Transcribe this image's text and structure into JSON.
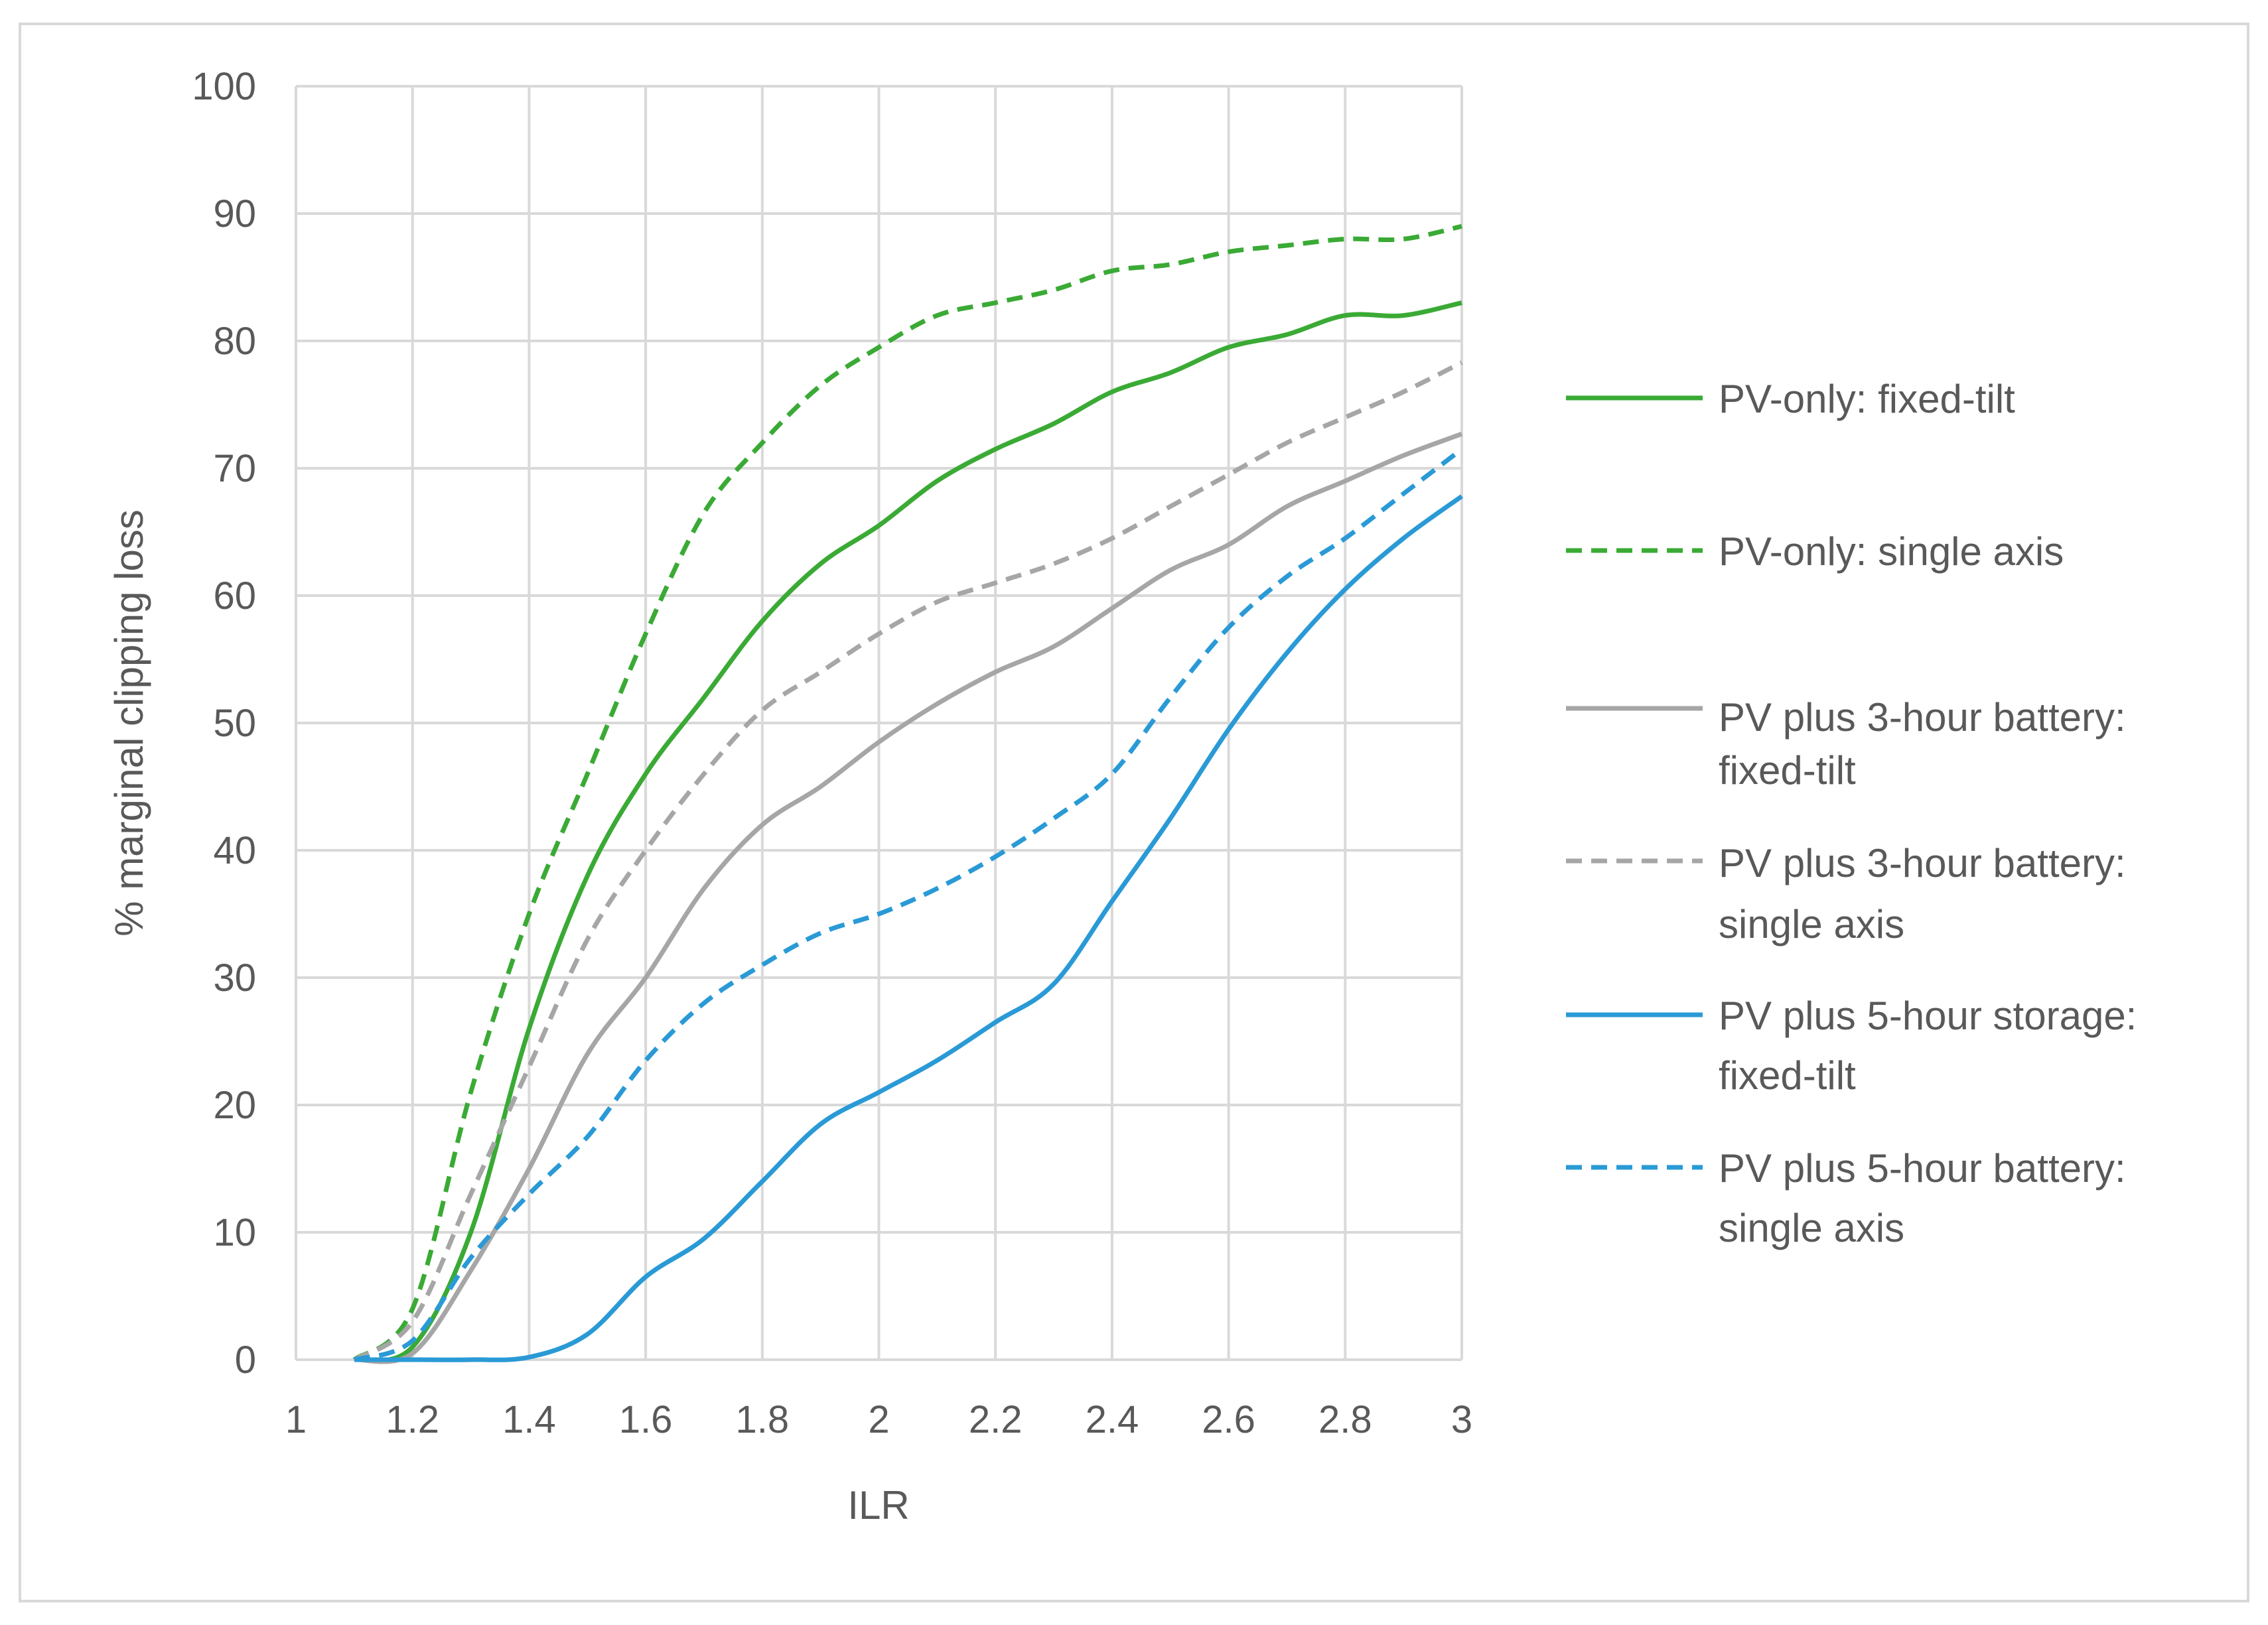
{
  "chart_data": {
    "type": "line",
    "title": "",
    "xlabel": "ILR",
    "ylabel": "% marginal clipping loss",
    "xlim": [
      1,
      3
    ],
    "ylim": [
      0,
      100
    ],
    "xticks": [
      "1",
      "1.2",
      "1.4",
      "1.6",
      "1.8",
      "2",
      "2.2",
      "2.4",
      "2.6",
      "2.8",
      "3"
    ],
    "yticks": [
      "0",
      "10",
      "20",
      "30",
      "40",
      "50",
      "60",
      "70",
      "80",
      "90",
      "100"
    ],
    "grid": true,
    "legend_position": "right",
    "x": [
      1.1,
      1.2,
      1.3,
      1.4,
      1.5,
      1.6,
      1.7,
      1.8,
      1.9,
      2.0,
      2.1,
      2.2,
      2.3,
      2.4,
      2.5,
      2.6,
      2.7,
      2.8,
      2.9,
      3.0
    ],
    "series": [
      {
        "name": [
          "PV-only: fixed-tilt"
        ],
        "color": "#3aaa35",
        "dash": "solid",
        "values": [
          0,
          1,
          10,
          26,
          38,
          46,
          52,
          58,
          62.5,
          65.5,
          69,
          71.5,
          73.5,
          76,
          77.5,
          79.5,
          80.5,
          82,
          82,
          83
        ]
      },
      {
        "name": [
          "PV-only: single axis"
        ],
        "color": "#3aaa35",
        "dash": "dashed",
        "values": [
          0,
          4,
          21,
          35,
          46,
          57,
          66.5,
          72,
          76.5,
          79.5,
          82,
          83,
          84,
          85.5,
          86,
          87,
          87.5,
          88,
          88,
          89
        ]
      },
      {
        "name": [
          "PV plus 3-hour battery:",
          "fixed-tilt"
        ],
        "color": "#a6a6a6",
        "dash": "solid",
        "values": [
          0,
          0.5,
          7,
          15,
          24,
          30,
          37,
          42,
          45,
          48.5,
          51.5,
          54,
          56,
          59,
          62,
          64,
          67,
          69,
          71,
          72.7
        ]
      },
      {
        "name": [
          "PV plus 3-hour battery:",
          "single axis"
        ],
        "color": "#a6a6a6",
        "dash": "dashed",
        "values": [
          0,
          3,
          13,
          23,
          33,
          40,
          46,
          51,
          54,
          57,
          59.5,
          61,
          62.5,
          64.5,
          67,
          69.5,
          72,
          74,
          76,
          78.3
        ]
      },
      {
        "name": [
          "PV plus 5-hour storage:",
          "fixed-tilt"
        ],
        "color": "#2a9ad6",
        "dash": "solid",
        "values": [
          0,
          0,
          0,
          0.2,
          2,
          6.5,
          9.5,
          14,
          18.5,
          21,
          23.5,
          26.5,
          29.5,
          36,
          42.5,
          49.5,
          55.5,
          60.5,
          64.5,
          67.8
        ]
      },
      {
        "name": [
          "PV plus 5-hour battery:",
          "single axis"
        ],
        "color": "#2a9ad6",
        "dash": "dashed",
        "values": [
          0,
          1.5,
          8,
          13,
          17.5,
          23.5,
          28,
          31,
          33.5,
          35,
          37,
          39.5,
          42.5,
          46,
          52,
          57.5,
          61.5,
          64.5,
          68,
          71.5
        ]
      }
    ]
  }
}
